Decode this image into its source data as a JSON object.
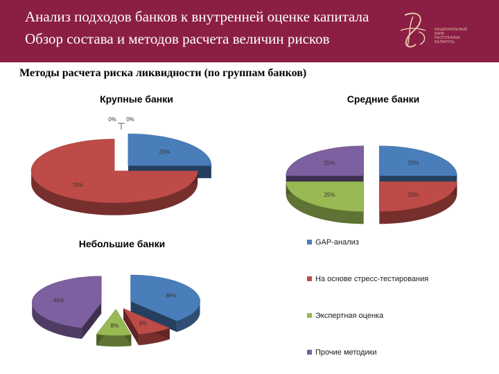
{
  "header": {
    "title_line1": "Анализ подходов банков к внутренней оценке капитала",
    "title_line2": "Обзор состава и методов расчета величин рисков",
    "logo_text": [
      "НАЦИОНАЛЬНЫЙ",
      "БАНК",
      "РЕСПУБЛИКИ",
      "БЕЛАРУСЬ"
    ]
  },
  "section_title": "Методы расчета риска ликвидности (по группам банков)",
  "legend": {
    "entries": [
      "GAP-анализ",
      "На основе стресс-тестирования",
      "Экспертная оценка",
      "Прочие методики"
    ]
  },
  "colors": {
    "header_bg": "#8b1e45",
    "series": [
      "#4a7ebb",
      "#be4b48",
      "#98b954",
      "#7d60a0"
    ]
  },
  "chart_data": [
    {
      "type": "pie",
      "title": "Крупные банки",
      "categories": [
        "GAP-анализ",
        "На основе стресс-тестирования",
        "Экспертная оценка",
        "Прочие методики"
      ],
      "values": [
        25,
        75,
        0,
        0
      ],
      "labels": [
        "25%",
        "75%",
        "0%",
        "0%"
      ],
      "style": "3d-exploded"
    },
    {
      "type": "pie",
      "title": "Средние банки",
      "categories": [
        "GAP-анализ",
        "На основе стресс-тестирования",
        "Экспертная оценка",
        "Прочие методики"
      ],
      "values": [
        25,
        25,
        25,
        25
      ],
      "labels": [
        "25%",
        "25%",
        "25%",
        "25%"
      ],
      "style": "3d-exploded"
    },
    {
      "type": "pie",
      "title": "Небольшие банки",
      "categories": [
        "GAP-анализ",
        "На основе стресс-тестирования",
        "Экспертная оценка",
        "Прочие методики"
      ],
      "values": [
        38,
        8,
        8,
        45
      ],
      "labels": [
        "38%",
        "8%",
        "8%",
        "45%"
      ],
      "style": "3d-exploded"
    }
  ]
}
